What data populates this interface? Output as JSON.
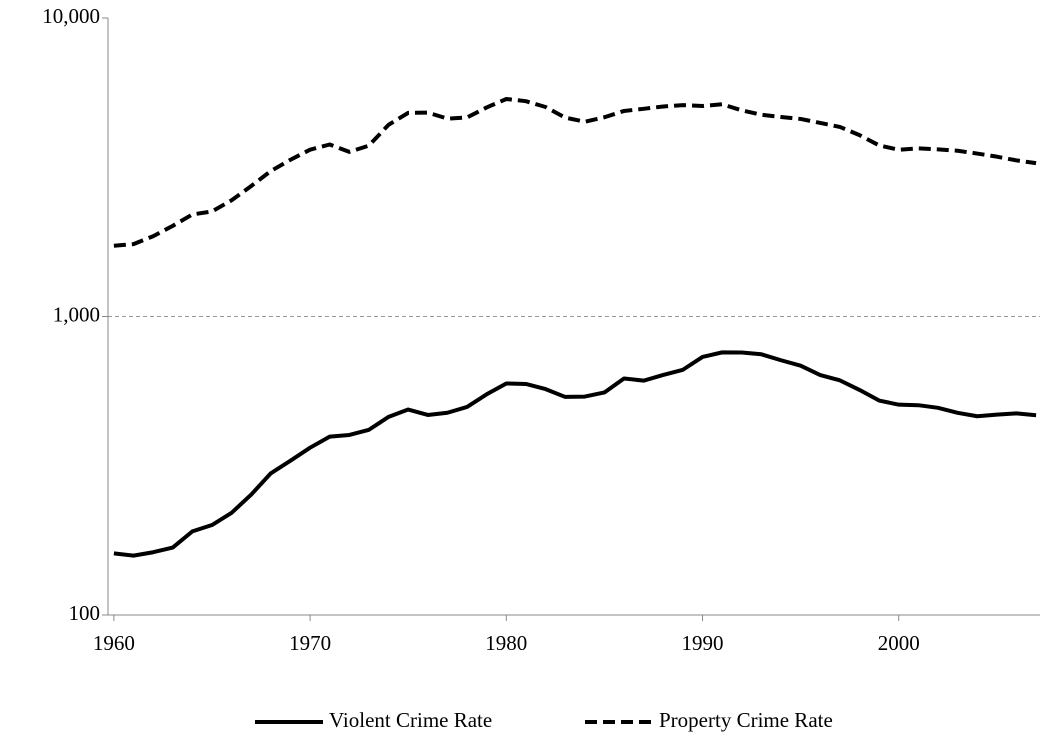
{
  "chart_data": {
    "type": "line",
    "x": [
      1960,
      1961,
      1962,
      1963,
      1964,
      1965,
      1966,
      1967,
      1968,
      1969,
      1970,
      1971,
      1972,
      1973,
      1974,
      1975,
      1976,
      1977,
      1978,
      1979,
      1980,
      1981,
      1982,
      1983,
      1984,
      1985,
      1986,
      1987,
      1988,
      1989,
      1990,
      1991,
      1992,
      1993,
      1994,
      1995,
      1996,
      1997,
      1998,
      1999,
      2000,
      2001,
      2002,
      2003,
      2004,
      2005,
      2006,
      2007
    ],
    "series": [
      {
        "name": "Violent Crime Rate",
        "color": "#000000",
        "dash": "solid",
        "values": [
          160.9,
          158.1,
          162.3,
          168.2,
          190.6,
          200.2,
          220.0,
          253.2,
          298.4,
          328.7,
          363.5,
          396.0,
          401.0,
          417.4,
          461.1,
          487.8,
          467.8,
          475.9,
          497.8,
          548.9,
          596.6,
          594.3,
          571.1,
          537.7,
          539.2,
          556.6,
          620.1,
          609.7,
          637.2,
          663.1,
          731.8,
          758.2,
          757.7,
          747.1,
          713.6,
          684.5,
          636.6,
          611.0,
          567.6,
          523.0,
          506.5,
          504.5,
          494.4,
          475.8,
          463.2,
          469.0,
          473.6,
          466.9
        ]
      },
      {
        "name": "Property Crime Rate",
        "color": "#000000",
        "dash": "dashed",
        "values": [
          1726.3,
          1747.9,
          1857.5,
          2012.1,
          2197.5,
          2248.8,
          2450.9,
          2736.5,
          3071.8,
          3351.3,
          3621.0,
          3768.8,
          3560.4,
          3737.0,
          4389.3,
          4810.7,
          4819.5,
          4601.7,
          4642.5,
          5016.6,
          5353.3,
          5263.9,
          5032.5,
          4637.4,
          4492.1,
          4650.5,
          4881.8,
          4963.0,
          5054.0,
          5107.1,
          5073.1,
          5140.2,
          4903.7,
          4740.0,
          4660.2,
          4590.5,
          4451.0,
          4316.3,
          4052.5,
          3743.6,
          3618.3,
          3658.1,
          3630.6,
          3591.2,
          3514.1,
          3431.5,
          3334.5,
          3263.5
        ]
      }
    ],
    "xlim": [
      1959.7,
      2007.2
    ],
    "xticks": [
      1960,
      1970,
      1980,
      1990,
      2000
    ],
    "ylim": [
      100,
      10000
    ],
    "yscale": "log",
    "yticks": [
      100,
      {
        "value": 1000,
        "label": "1,000"
      },
      {
        "value": 10000,
        "label": "10,000"
      }
    ],
    "grid": true,
    "legend": "bottom"
  }
}
